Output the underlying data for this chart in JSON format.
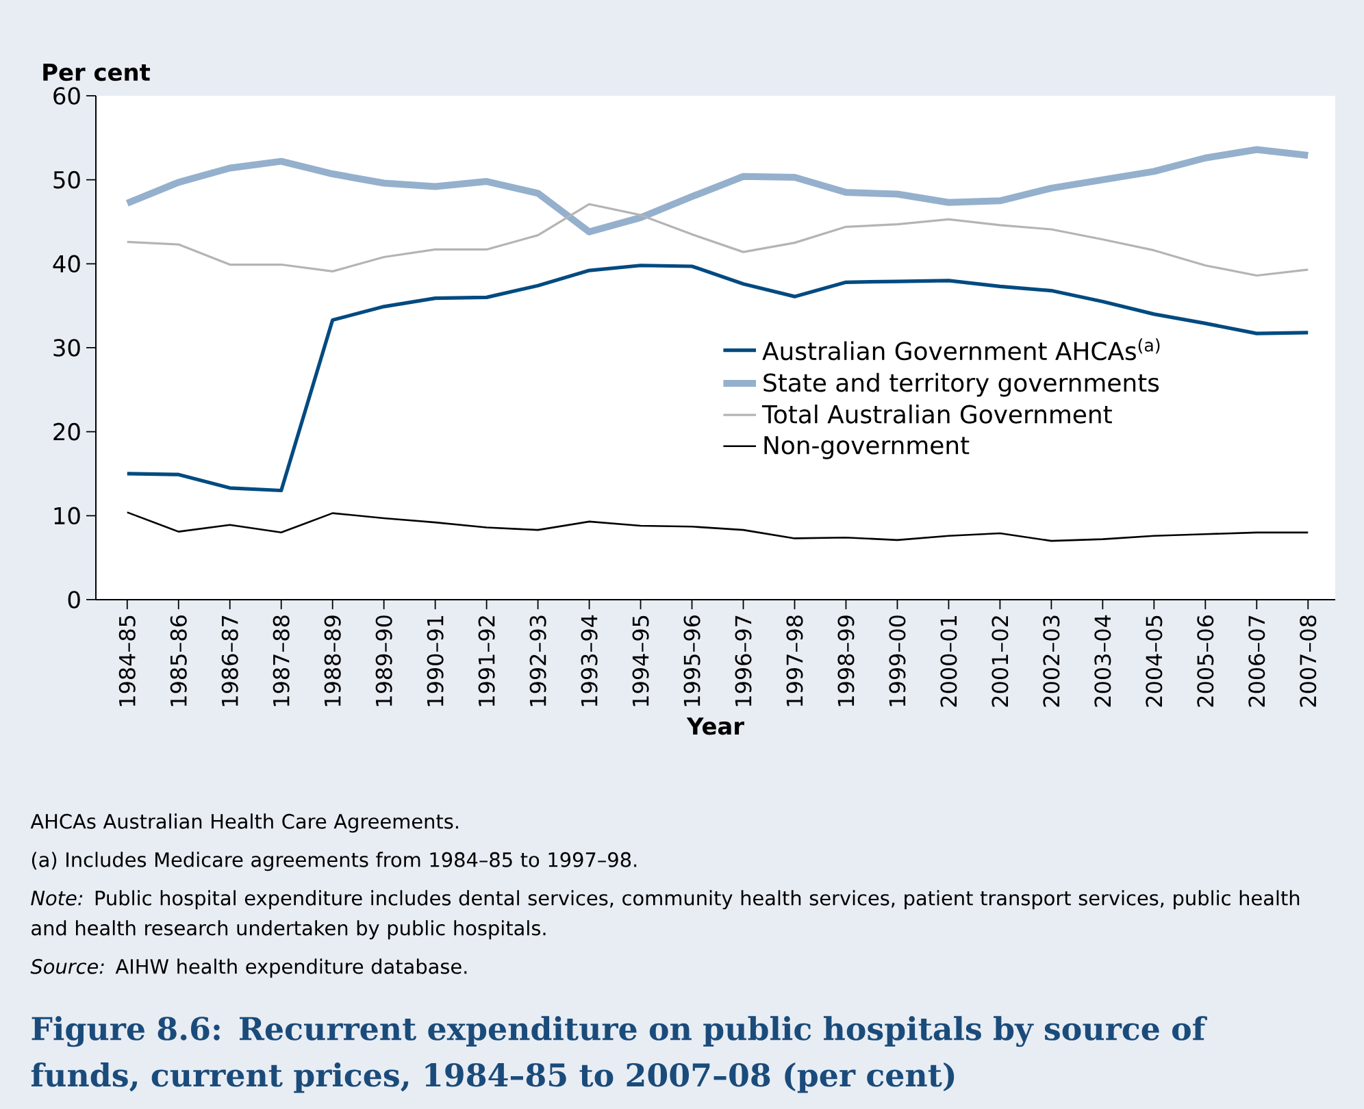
{
  "chart_data": {
    "type": "line",
    "title": "Figure 8.6: Recurrent expenditure on public hospitals by source of funds, current prices, 1984–85 to 2007–08 (per cent)",
    "xlabel": "Year",
    "ylabel": "Per cent",
    "categories": [
      "1984–85",
      "1985–86",
      "1986–87",
      "1987–88",
      "1988–89",
      "1989–90",
      "1990–91",
      "1991–92",
      "1992–93",
      "1993–94",
      "1994–95",
      "1995–96",
      "1996–97",
      "1997–98",
      "1998–99",
      "1999–00",
      "2000–01",
      "2001–02",
      "2002–03",
      "2003–04",
      "2004–05",
      "2005–06",
      "2006–07",
      "2007–08"
    ],
    "ylim": [
      0,
      60
    ],
    "yticks": [
      0,
      10,
      20,
      30,
      40,
      50,
      60
    ],
    "legend": "center right",
    "grid": false,
    "marker": "none",
    "line_style": "solid",
    "series": [
      {
        "name": "Australian Government AHCAs$^{(a)}$",
        "color": "#004a80",
        "values": [
          15.0,
          14.9,
          13.3,
          13.0,
          33.3,
          34.9,
          35.9,
          36.0,
          37.4,
          39.2,
          39.8,
          39.7,
          37.6,
          36.1,
          37.8,
          37.9,
          38.0,
          37.3,
          36.8,
          35.5,
          34.0,
          32.9,
          31.7,
          31.8
        ]
      },
      {
        "name": "State and territory governments",
        "color": "#94b0cc",
        "values": [
          47.2,
          49.7,
          51.4,
          52.2,
          50.7,
          49.6,
          49.2,
          49.8,
          48.4,
          43.8,
          45.5,
          48.0,
          50.4,
          50.3,
          48.5,
          48.3,
          47.3,
          47.5,
          49.0,
          50.0,
          51.0,
          52.6,
          53.6,
          52.9
        ]
      },
      {
        "name": "Total Australian Government",
        "color": "#b4b4b4",
        "values": [
          42.6,
          42.3,
          39.9,
          39.9,
          39.1,
          40.8,
          41.7,
          41.7,
          43.4,
          47.1,
          45.8,
          43.5,
          41.4,
          42.5,
          44.4,
          44.7,
          45.3,
          44.6,
          44.1,
          42.9,
          41.6,
          39.8,
          38.6,
          39.3
        ]
      },
      {
        "name": "Non-government",
        "color": "#000000",
        "values": [
          10.4,
          8.1,
          8.9,
          8.0,
          10.3,
          9.7,
          9.2,
          8.6,
          8.3,
          9.3,
          8.8,
          8.7,
          8.3,
          7.3,
          7.4,
          7.1,
          7.6,
          7.9,
          7.0,
          7.2,
          7.6,
          7.8,
          8.0,
          8.0
        ]
      }
    ],
    "annotations": [
      "AHCAs  Australian Health Care Agreements.",
      "(a)  Includes Medicare agreements from 1984–85 to 1997–98.",
      "*Note:* Public hospital expenditure includes dental services, community health services, patient transport services, public health and health research undertaken by public hospitals.",
      "*Source:* AIHW health expenditure database."
    ]
  }
}
